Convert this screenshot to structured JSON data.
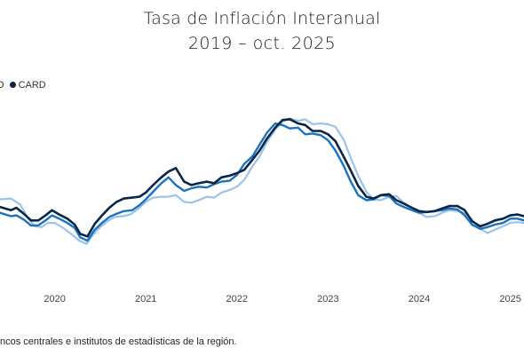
{
  "title": "Tasa de Inflación Interanual",
  "subtitle": "2019 – oct. 2025",
  "legend": {
    "partial_label": "O",
    "items": [
      {
        "name": "CARD",
        "color": "#0b2545"
      }
    ]
  },
  "source_text": "ncos centrales e institutos de estadísticas de la región.",
  "chart_data": {
    "type": "line",
    "x_tick_labels": [
      "2020",
      "2021",
      "2022",
      "2023",
      "2024",
      "2025"
    ],
    "x_tick_values": [
      2020,
      2021,
      2022,
      2023,
      2024,
      2025
    ],
    "xlim": [
      2019.4,
      2025.15
    ],
    "ylim": [
      -1.5,
      8.5
    ],
    "grid": false,
    "legend_position": "top-left",
    "series": [
      {
        "name": "",
        "color": "#9cc3ea",
        "points": [
          [
            2019.4,
            3.0
          ],
          [
            2019.52,
            3.05
          ],
          [
            2019.62,
            2.7
          ],
          [
            2019.7,
            1.95
          ],
          [
            2019.78,
            1.4
          ],
          [
            2019.86,
            1.35
          ],
          [
            2019.92,
            1.6
          ],
          [
            2020.0,
            1.6
          ],
          [
            2020.08,
            1.35
          ],
          [
            2020.18,
            0.95
          ],
          [
            2020.27,
            0.55
          ],
          [
            2020.35,
            0.35
          ],
          [
            2020.42,
            0.9
          ],
          [
            2020.5,
            1.35
          ],
          [
            2020.58,
            1.7
          ],
          [
            2020.66,
            1.95
          ],
          [
            2020.75,
            2.0
          ],
          [
            2020.83,
            2.1
          ],
          [
            2020.92,
            2.45
          ],
          [
            2021.0,
            2.85
          ],
          [
            2021.08,
            3.1
          ],
          [
            2021.17,
            3.15
          ],
          [
            2021.25,
            3.15
          ],
          [
            2021.33,
            3.25
          ],
          [
            2021.42,
            2.85
          ],
          [
            2021.5,
            2.8
          ],
          [
            2021.58,
            2.95
          ],
          [
            2021.67,
            3.15
          ],
          [
            2021.75,
            3.1
          ],
          [
            2021.83,
            3.4
          ],
          [
            2021.92,
            3.55
          ],
          [
            2022.0,
            3.75
          ],
          [
            2022.08,
            4.15
          ],
          [
            2022.17,
            4.95
          ],
          [
            2022.25,
            5.55
          ],
          [
            2022.33,
            6.4
          ],
          [
            2022.42,
            7.15
          ],
          [
            2022.5,
            7.6
          ],
          [
            2022.58,
            7.8
          ],
          [
            2022.67,
            7.65
          ],
          [
            2022.75,
            7.75
          ],
          [
            2022.83,
            7.45
          ],
          [
            2022.92,
            7.5
          ],
          [
            2023.0,
            7.45
          ],
          [
            2023.08,
            7.3
          ],
          [
            2023.17,
            6.55
          ],
          [
            2023.25,
            5.45
          ],
          [
            2023.33,
            4.4
          ],
          [
            2023.42,
            3.45
          ],
          [
            2023.5,
            3.0
          ],
          [
            2023.58,
            2.95
          ],
          [
            2023.67,
            3.15
          ],
          [
            2023.75,
            3.2
          ],
          [
            2023.83,
            2.8
          ],
          [
            2023.92,
            2.5
          ],
          [
            2024.0,
            2.2
          ],
          [
            2024.08,
            1.95
          ],
          [
            2024.17,
            2.0
          ],
          [
            2024.25,
            2.2
          ],
          [
            2024.33,
            2.35
          ],
          [
            2024.42,
            2.3
          ],
          [
            2024.5,
            2.2
          ],
          [
            2024.58,
            1.8
          ],
          [
            2024.67,
            1.25
          ],
          [
            2024.75,
            1.0
          ],
          [
            2024.83,
            1.2
          ],
          [
            2024.92,
            1.4
          ],
          [
            2025.0,
            1.6
          ],
          [
            2025.08,
            1.65
          ],
          [
            2025.15,
            1.6
          ]
        ]
      },
      {
        "name": "",
        "color": "#1a73c0",
        "points": [
          [
            2019.4,
            2.2
          ],
          [
            2019.52,
            2.0
          ],
          [
            2019.58,
            2.05
          ],
          [
            2019.66,
            1.8
          ],
          [
            2019.74,
            1.45
          ],
          [
            2019.82,
            1.45
          ],
          [
            2019.9,
            1.75
          ],
          [
            2019.97,
            2.05
          ],
          [
            2020.05,
            1.85
          ],
          [
            2020.14,
            1.6
          ],
          [
            2020.22,
            1.3
          ],
          [
            2020.28,
            0.75
          ],
          [
            2020.36,
            0.55
          ],
          [
            2020.44,
            1.2
          ],
          [
            2020.52,
            1.6
          ],
          [
            2020.6,
            1.95
          ],
          [
            2020.68,
            2.15
          ],
          [
            2020.76,
            2.3
          ],
          [
            2020.85,
            2.35
          ],
          [
            2020.93,
            2.65
          ],
          [
            2021.0,
            3.0
          ],
          [
            2021.08,
            3.45
          ],
          [
            2021.17,
            3.95
          ],
          [
            2021.25,
            4.3
          ],
          [
            2021.33,
            3.85
          ],
          [
            2021.42,
            3.5
          ],
          [
            2021.5,
            3.65
          ],
          [
            2021.58,
            3.75
          ],
          [
            2021.67,
            3.7
          ],
          [
            2021.75,
            3.9
          ],
          [
            2021.83,
            4.05
          ],
          [
            2021.92,
            4.1
          ],
          [
            2022.0,
            4.45
          ],
          [
            2022.08,
            5.1
          ],
          [
            2022.17,
            5.55
          ],
          [
            2022.25,
            6.25
          ],
          [
            2022.33,
            6.95
          ],
          [
            2022.42,
            7.5
          ],
          [
            2022.5,
            7.4
          ],
          [
            2022.58,
            7.2
          ],
          [
            2022.67,
            7.25
          ],
          [
            2022.75,
            6.85
          ],
          [
            2022.83,
            6.9
          ],
          [
            2022.92,
            6.8
          ],
          [
            2023.0,
            6.5
          ],
          [
            2023.08,
            5.9
          ],
          [
            2023.17,
            5.0
          ],
          [
            2023.25,
            4.05
          ],
          [
            2023.33,
            3.25
          ],
          [
            2023.42,
            2.95
          ],
          [
            2023.5,
            3.0
          ],
          [
            2023.58,
            3.25
          ],
          [
            2023.67,
            3.2
          ],
          [
            2023.75,
            2.75
          ],
          [
            2023.83,
            2.55
          ],
          [
            2023.92,
            2.35
          ],
          [
            2024.0,
            2.2
          ],
          [
            2024.08,
            2.25
          ],
          [
            2024.17,
            2.3
          ],
          [
            2024.25,
            2.35
          ],
          [
            2024.33,
            2.45
          ],
          [
            2024.42,
            2.4
          ],
          [
            2024.5,
            2.05
          ],
          [
            2024.58,
            1.5
          ],
          [
            2024.67,
            1.25
          ],
          [
            2024.75,
            1.35
          ],
          [
            2024.83,
            1.5
          ],
          [
            2024.92,
            1.6
          ],
          [
            2025.0,
            1.85
          ],
          [
            2025.08,
            1.85
          ],
          [
            2025.15,
            1.75
          ]
        ]
      },
      {
        "name": "CARD",
        "color": "#0b2545",
        "points": [
          [
            2019.4,
            2.55
          ],
          [
            2019.52,
            2.35
          ],
          [
            2019.58,
            2.5
          ],
          [
            2019.66,
            2.15
          ],
          [
            2019.74,
            1.75
          ],
          [
            2019.82,
            1.75
          ],
          [
            2019.9,
            2.05
          ],
          [
            2019.97,
            2.35
          ],
          [
            2020.05,
            2.1
          ],
          [
            2020.14,
            1.85
          ],
          [
            2020.22,
            1.5
          ],
          [
            2020.28,
            0.95
          ],
          [
            2020.36,
            0.8
          ],
          [
            2020.44,
            1.55
          ],
          [
            2020.52,
            2.05
          ],
          [
            2020.6,
            2.5
          ],
          [
            2020.68,
            2.85
          ],
          [
            2020.76,
            3.05
          ],
          [
            2020.85,
            3.1
          ],
          [
            2020.93,
            3.15
          ],
          [
            2021.0,
            3.4
          ],
          [
            2021.08,
            3.85
          ],
          [
            2021.17,
            4.3
          ],
          [
            2021.25,
            4.65
          ],
          [
            2021.33,
            4.85
          ],
          [
            2021.42,
            4.05
          ],
          [
            2021.5,
            3.85
          ],
          [
            2021.58,
            3.95
          ],
          [
            2021.67,
            4.05
          ],
          [
            2021.75,
            3.95
          ],
          [
            2021.83,
            4.3
          ],
          [
            2021.92,
            4.4
          ],
          [
            2022.0,
            4.55
          ],
          [
            2022.08,
            4.75
          ],
          [
            2022.17,
            5.35
          ],
          [
            2022.25,
            5.9
          ],
          [
            2022.33,
            6.6
          ],
          [
            2022.42,
            7.25
          ],
          [
            2022.5,
            7.7
          ],
          [
            2022.58,
            7.75
          ],
          [
            2022.67,
            7.5
          ],
          [
            2022.75,
            7.4
          ],
          [
            2022.83,
            7.05
          ],
          [
            2022.92,
            7.05
          ],
          [
            2023.0,
            6.85
          ],
          [
            2023.08,
            6.45
          ],
          [
            2023.17,
            5.55
          ],
          [
            2023.25,
            4.7
          ],
          [
            2023.33,
            3.8
          ],
          [
            2023.42,
            3.15
          ],
          [
            2023.5,
            3.05
          ],
          [
            2023.58,
            3.25
          ],
          [
            2023.67,
            3.3
          ],
          [
            2023.75,
            2.95
          ],
          [
            2023.83,
            2.75
          ],
          [
            2023.92,
            2.5
          ],
          [
            2024.0,
            2.3
          ],
          [
            2024.08,
            2.25
          ],
          [
            2024.17,
            2.3
          ],
          [
            2024.25,
            2.45
          ],
          [
            2024.33,
            2.6
          ],
          [
            2024.42,
            2.6
          ],
          [
            2024.5,
            2.35
          ],
          [
            2024.58,
            1.7
          ],
          [
            2024.67,
            1.4
          ],
          [
            2024.75,
            1.55
          ],
          [
            2024.83,
            1.75
          ],
          [
            2024.92,
            1.85
          ],
          [
            2025.0,
            2.05
          ],
          [
            2025.08,
            2.1
          ],
          [
            2025.15,
            2.0
          ]
        ]
      }
    ]
  }
}
